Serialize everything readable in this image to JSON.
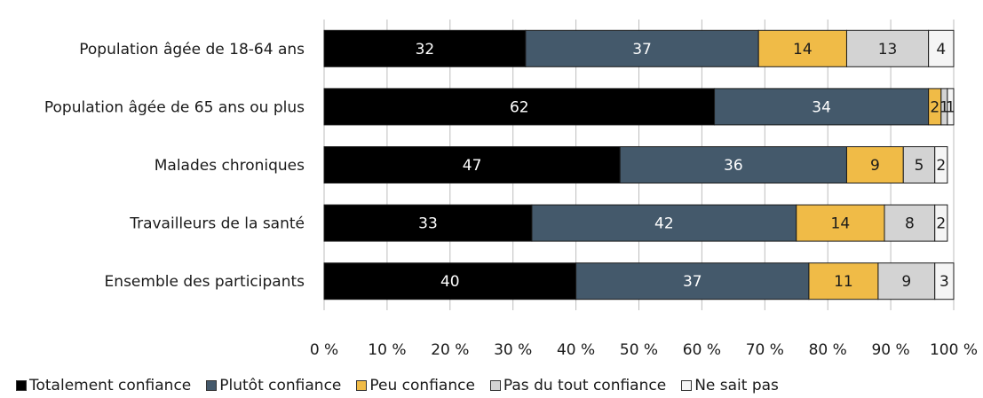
{
  "chart_data": {
    "type": "bar",
    "orientation": "horizontal",
    "stacked": true,
    "percent_stacked": true,
    "categories": [
      "Population âgée de 18-64 ans",
      "Population âgée de 65 ans ou plus",
      "Malades chroniques",
      "Travailleurs de la santé",
      "Ensemble des participants"
    ],
    "series": [
      {
        "name": "Totalement confiance",
        "color": "#000000",
        "label_color": "#ffffff",
        "values": [
          32,
          62,
          47,
          33,
          40
        ]
      },
      {
        "name": "Plutôt confiance",
        "color": "#44596b",
        "label_color": "#ffffff",
        "values": [
          37,
          34,
          36,
          42,
          37
        ]
      },
      {
        "name": "Peu confiance",
        "color": "#f0bb47",
        "label_color": "#1a1a1a",
        "values": [
          14,
          2,
          9,
          14,
          11
        ]
      },
      {
        "name": "Pas du tout confiance",
        "color": "#d3d3d3",
        "label_color": "#1a1a1a",
        "values": [
          13,
          1,
          5,
          8,
          9
        ]
      },
      {
        "name": "Ne sait pas",
        "color": "#f5f5f5",
        "label_color": "#1a1a1a",
        "values": [
          4,
          1,
          2,
          2,
          3
        ]
      }
    ],
    "x_ticks": [
      "0 %",
      "10 %",
      "20 %",
      "30 %",
      "40 %",
      "50 %",
      "60 %",
      "70 %",
      "80 %",
      "90 %",
      "100 %"
    ],
    "xlim": [
      0,
      100
    ],
    "grid": true,
    "legend_position": "bottom",
    "title": "",
    "xlabel": "",
    "ylabel": ""
  }
}
